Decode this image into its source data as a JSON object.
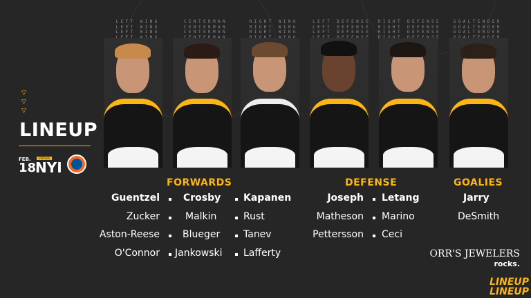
{
  "title": "LINEUP",
  "game": {
    "month": "FEB.",
    "day": "18",
    "versus_label": "VERSUS",
    "opponent": "NYI",
    "opponent_logo": "islanders-logo-icon"
  },
  "positions": [
    "LEFT WING",
    "CENTERMAN",
    "RIGHT WING",
    "LEFT DEFENSE",
    "RIGHT DEFENSE",
    "GOALTENDER"
  ],
  "groups": {
    "forwards": "FORWARDS",
    "defense": "DEFENSE",
    "goalies": "GOALIES"
  },
  "forwards": {
    "left_wing": [
      "Guentzel",
      "Zucker",
      "Aston-Reese",
      "O'Connor"
    ],
    "center": [
      "Crosby",
      "Malkin",
      "Blueger",
      "Jankowski"
    ],
    "right_wing": [
      "Kapanen",
      "Rust",
      "Tanev",
      "Lafferty"
    ]
  },
  "defense": {
    "left": [
      "Joseph",
      "Matheson",
      "Pettersson"
    ],
    "right": [
      "Letang",
      "Marino",
      "Ceci"
    ]
  },
  "goalies": [
    "Jarry",
    "DeSmith"
  ],
  "sponsor": {
    "name": "ORR'S JEWELERS",
    "tagline": "rocks."
  },
  "footer_logo": "LINEUP",
  "colors": {
    "accent": "#fcb514",
    "background": "#262626"
  }
}
